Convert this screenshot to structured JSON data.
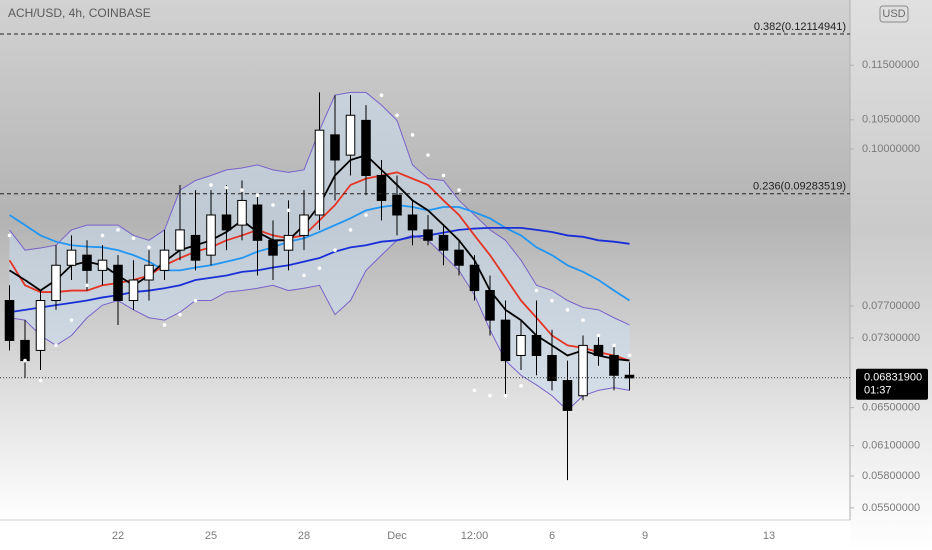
{
  "chart_data": {
    "type": "candlestick",
    "title": "ACH/USD, 4h, COINBASE",
    "currency": "USD",
    "log_scale": true,
    "ylim": [
      0.0539,
      0.1282
    ],
    "yticks": [
      {
        "value": 0.115,
        "label": "0.11500000"
      },
      {
        "value": 0.105,
        "label": "0.10500000"
      },
      {
        "value": 0.1,
        "label": "0.10000000"
      },
      {
        "value": 0.077,
        "label": "0.07700000"
      },
      {
        "value": 0.073,
        "label": "0.07300000"
      },
      {
        "value": 0.065,
        "label": "0.06500000"
      },
      {
        "value": 0.061,
        "label": "0.06100000"
      },
      {
        "value": 0.058,
        "label": "0.05800000"
      },
      {
        "value": 0.055,
        "label": "0.05500000"
      }
    ],
    "categories": [
      null,
      null,
      null,
      null,
      null,
      null,
      null,
      "22",
      null,
      null,
      null,
      null,
      null,
      "25",
      null,
      null,
      null,
      null,
      null,
      "28",
      null,
      null,
      null,
      null,
      null,
      "Dec",
      null,
      null,
      null,
      null,
      "12:00",
      null,
      null,
      null,
      null,
      "6",
      null,
      null,
      null,
      null,
      null,
      "9",
      null,
      null,
      null,
      null,
      null,
      null,
      null,
      "13",
      null,
      null,
      null,
      null,
      null
    ],
    "open": [
      0.0777,
      0.0727,
      0.0715,
      0.0777,
      0.0824,
      0.0838,
      0.0817,
      0.0824,
      0.0777,
      0.0804,
      0.0817,
      0.0845,
      0.0866,
      0.0838,
      0.0896,
      0.0881,
      0.0911,
      0.0859,
      0.0845,
      0.0866,
      0.0896,
      0.1024,
      0.099,
      0.1049,
      0.0957,
      0.0926,
      0.0896,
      0.0874,
      0.0866,
      0.0845,
      0.0824,
      0.079,
      0.0752,
      0.0709,
      0.0733,
      0.0709,
      0.068,
      0.0663,
      0.0721,
      0.0709,
      0.0686,
      null,
      null,
      null,
      null,
      null,
      null,
      null,
      null,
      null,
      null,
      null,
      null,
      null,
      null
    ],
    "high": [
      0.0797,
      0.0752,
      0.079,
      0.0852,
      0.0866,
      0.0859,
      0.0852,
      0.0838,
      0.0831,
      0.0845,
      0.0874,
      0.0942,
      0.0934,
      0.0934,
      0.0942,
      0.0949,
      0.0926,
      0.0888,
      0.0918,
      0.0934,
      0.1099,
      0.1094,
      0.1094,
      0.1076,
      0.0982,
      0.0957,
      0.0918,
      0.0896,
      0.0881,
      0.0859,
      0.0838,
      0.081,
      0.0777,
      0.0752,
      0.0777,
      0.074,
      0.0703,
      0.0733,
      0.0733,
      0.0721,
      0.0701,
      null,
      null,
      null,
      null,
      null,
      null,
      null,
      null,
      null,
      null,
      null,
      null,
      null,
      null
    ],
    "low": [
      0.0715,
      0.0683,
      0.0692,
      0.0765,
      0.0804,
      0.079,
      0.0797,
      0.0746,
      0.0765,
      0.0777,
      0.0804,
      0.0831,
      0.0817,
      0.0824,
      0.0845,
      0.0859,
      0.081,
      0.0804,
      0.0817,
      0.0845,
      0.0874,
      0.0918,
      0.0957,
      0.0926,
      0.0888,
      0.0866,
      0.0852,
      0.0852,
      0.0824,
      0.081,
      0.0777,
      0.0733,
      0.0663,
      0.0692,
      0.0686,
      0.0669,
      0.0576,
      0.0658,
      0.0697,
      0.0669,
      0.0669,
      null,
      null,
      null,
      null,
      null,
      null,
      null,
      null,
      null,
      null,
      null,
      null,
      null,
      null
    ],
    "close": [
      0.0727,
      0.0703,
      0.0777,
      0.0824,
      0.0845,
      0.0817,
      0.0831,
      0.0777,
      0.0804,
      0.0824,
      0.0845,
      0.0874,
      0.0831,
      0.0896,
      0.0874,
      0.0918,
      0.0859,
      0.0838,
      0.0866,
      0.0896,
      0.1032,
      0.0982,
      0.1058,
      0.0957,
      0.0918,
      0.0896,
      0.0874,
      0.0859,
      0.0845,
      0.0824,
      0.079,
      0.0752,
      0.0703,
      0.0733,
      0.0709,
      0.068,
      0.0647,
      0.0721,
      0.0709,
      0.0686,
      0.0683,
      null,
      null,
      null,
      null,
      null,
      null,
      null,
      null,
      null,
      null,
      null,
      null,
      null,
      null
    ],
    "up_color": "#ffffff",
    "down_color": "#000000",
    "band_fill": "#c8dcf0",
    "series": [
      {
        "color": "#7b61c9",
        "values": [
          0.0874,
          0.0845,
          0.0848,
          0.0852,
          0.0874,
          0.0881,
          0.0881,
          0.0881,
          0.0866,
          0.0859,
          0.0874,
          0.0934,
          0.0949,
          0.0957,
          0.0966,
          0.0969,
          0.0974,
          0.0966,
          0.0962,
          0.0966,
          0.1032,
          0.1094,
          0.1099,
          0.1099,
          0.1076,
          0.1049,
          0.0974,
          0.0952,
          0.0949,
          0.0918,
          0.0896,
          0.0874,
          0.0859,
          0.0831,
          0.0797,
          0.079,
          0.0777,
          0.0768,
          0.0765,
          0.0755,
          0.0746,
          null,
          null,
          null,
          null,
          null,
          null,
          null,
          null,
          null,
          null,
          null,
          null,
          null,
          null
        ]
      },
      {
        "color": "#7b61c9",
        "values": [
          0.0755,
          0.0752,
          0.0733,
          0.0721,
          0.0733,
          0.0755,
          0.0771,
          0.0777,
          0.0765,
          0.0755,
          0.0752,
          0.0762,
          0.0777,
          0.0777,
          0.0788,
          0.079,
          0.0793,
          0.0797,
          0.079,
          0.0793,
          0.0797,
          0.0759,
          0.0777,
          0.0817,
          0.0838,
          0.0859,
          0.0866,
          0.0859,
          0.0838,
          0.0817,
          0.0784,
          0.074,
          0.0703,
          0.0686,
          0.0675,
          0.0663,
          0.0647,
          0.0663,
          0.0669,
          0.0672,
          0.0669,
          null,
          null,
          null,
          null,
          null,
          null,
          null,
          null,
          null,
          null,
          null,
          null,
          null,
          null
        ]
      },
      {
        "color": "#2196f3",
        "values": [
          0.0896,
          0.0881,
          0.0866,
          0.0857,
          0.0852,
          0.085,
          0.0849,
          0.0845,
          0.0838,
          0.0829,
          0.0817,
          0.0817,
          0.0821,
          0.0824,
          0.0829,
          0.0834,
          0.0843,
          0.0849,
          0.0857,
          0.0862,
          0.0871,
          0.0881,
          0.0891,
          0.0903,
          0.0908,
          0.0911,
          0.0908,
          0.0903,
          0.0908,
          0.0908,
          0.09,
          0.0891,
          0.0877,
          0.0866,
          0.0849,
          0.0838,
          0.0824,
          0.0815,
          0.0804,
          0.079,
          0.0777,
          null,
          null,
          null,
          null,
          null,
          null,
          null,
          null,
          null,
          null,
          null,
          null,
          null,
          null
        ]
      },
      {
        "color": "#1a2ed8",
        "values": [
          0.0762,
          0.0765,
          0.0768,
          0.0771,
          0.0774,
          0.0777,
          0.0781,
          0.0784,
          0.0788,
          0.079,
          0.0793,
          0.0797,
          0.0804,
          0.0807,
          0.081,
          0.0815,
          0.0817,
          0.0821,
          0.0824,
          0.0829,
          0.0834,
          0.0843,
          0.0849,
          0.0852,
          0.0857,
          0.0859,
          0.0864,
          0.0866,
          0.087,
          0.0874,
          0.0876,
          0.0877,
          0.0877,
          0.0877,
          0.0874,
          0.0871,
          0.0866,
          0.0864,
          0.0859,
          0.0857,
          0.0854,
          null,
          null,
          null,
          null,
          null,
          null,
          null,
          null,
          null,
          null,
          null,
          null,
          null,
          null
        ]
      },
      {
        "color": "#e53424",
        "values": [
          0.0831,
          0.0797,
          0.0788,
          0.0788,
          0.079,
          0.079,
          0.0797,
          0.08,
          0.0804,
          0.081,
          0.0824,
          0.0834,
          0.0843,
          0.0849,
          0.0859,
          0.0866,
          0.0874,
          0.0866,
          0.0862,
          0.0866,
          0.0888,
          0.0911,
          0.0942,
          0.0952,
          0.0957,
          0.0962,
          0.0952,
          0.0942,
          0.0918,
          0.0896,
          0.0866,
          0.0838,
          0.0807,
          0.0777,
          0.0755,
          0.0733,
          0.0721,
          0.0718,
          0.0713,
          0.0709,
          0.0703,
          null,
          null,
          null,
          null,
          null,
          null,
          null,
          null,
          null,
          null,
          null,
          null,
          null,
          null
        ]
      },
      {
        "color": "#000000",
        "values": [
          0.0817,
          0.0804,
          0.079,
          0.0804,
          0.0824,
          0.0829,
          0.0824,
          0.081,
          0.0797,
          0.081,
          0.0829,
          0.0845,
          0.0852,
          0.0859,
          0.0871,
          0.0888,
          0.0871,
          0.0859,
          0.0859,
          0.0881,
          0.0911,
          0.0957,
          0.0982,
          0.099,
          0.0966,
          0.0942,
          0.0918,
          0.0903,
          0.0881,
          0.0859,
          0.0831,
          0.079,
          0.0765,
          0.0752,
          0.0733,
          0.0721,
          0.0709,
          0.0715,
          0.0709,
          0.0705,
          0.0703,
          null,
          null,
          null,
          null,
          null,
          null,
          null,
          null,
          null,
          null,
          null,
          null,
          null,
          null
        ]
      },
      {
        "color": "#ffffff",
        "style": "dots",
        "values": [
          0.0866,
          0.0703,
          0.068,
          0.0721,
          0.0752,
          0.0797,
          0.0866,
          0.0874,
          0.0862,
          0.0849,
          0.0746,
          0.0759,
          0.0777,
          0.0942,
          0.0938,
          0.0934,
          0.0926,
          0.0911,
          0.0903,
          0.081,
          0.082,
          0.0845,
          0.0874,
          0.0896,
          0.1094,
          0.1058,
          0.1024,
          0.099,
          0.0957,
          0.0934,
          0.0669,
          0.0663,
          0.0663,
          0.0674,
          0.079,
          0.0777,
          0.0765,
          0.0752,
          0.0733,
          0.0721,
          0.0709,
          null,
          null,
          null,
          null,
          null,
          null,
          null,
          null,
          null,
          null,
          null,
          null,
          null,
          null
        ]
      }
    ],
    "annotations": [
      {
        "value": 0.12114941,
        "label": "0.382(0.12114941)"
      },
      {
        "value": 0.09283519,
        "label": "0.236(0.09283519)"
      }
    ],
    "last_price": {
      "value": 0.068319,
      "label": "0.06831900"
    },
    "countdown": "01:37"
  }
}
